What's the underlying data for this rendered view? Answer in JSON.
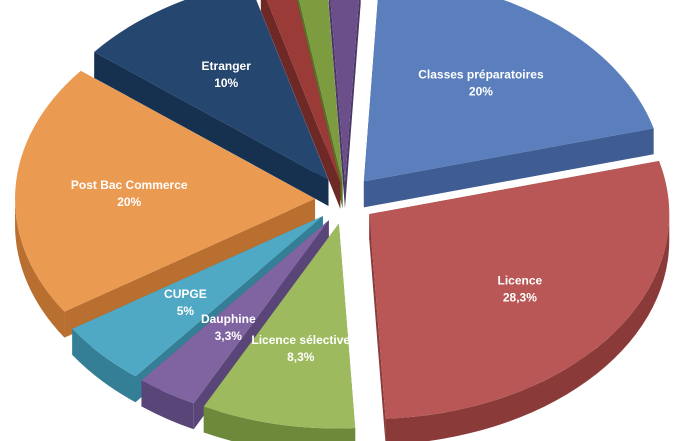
{
  "chart_data": {
    "type": "pie",
    "style": "3d-exploded",
    "slices": [
      {
        "label": "Classes préparatoires",
        "value": 20,
        "value_label": "20%",
        "color": "#5b7fbd",
        "side": "#3f5c93"
      },
      {
        "label": "Licence",
        "value": 28.3,
        "value_label": "28,3%",
        "color": "#b85755",
        "side": "#8a3a39"
      },
      {
        "label": "Licence sélective",
        "value": 8.3,
        "value_label": "8,3%",
        "color": "#9dbb5e",
        "side": "#6d8a3b"
      },
      {
        "label": "Dauphine",
        "value": 3.3,
        "value_label": "3,3%",
        "color": "#8064a2",
        "side": "#5a4578"
      },
      {
        "label": "CUPGE",
        "value": 5,
        "value_label": "5%",
        "color": "#4fa9c4",
        "side": "#347f96"
      },
      {
        "label": "Post Bac Commerce",
        "value": 20,
        "value_label": "20%",
        "color": "#eb9a52",
        "side": "#b86f30"
      },
      {
        "label": "Etranger",
        "value": 10,
        "value_label": "10%",
        "color": "#25466f",
        "side": "#16304f"
      },
      {
        "label": "",
        "value": 1.7,
        "value_label": "",
        "color": "#9b3b38",
        "side": "#6e2826"
      },
      {
        "label": "",
        "value": 1.7,
        "value_label": "",
        "color": "#7d9c40",
        "side": "#587226"
      },
      {
        "label": "",
        "value": 1.7,
        "value_label": "",
        "color": "#6a4f8a",
        "side": "#4a3764"
      }
    ]
  }
}
